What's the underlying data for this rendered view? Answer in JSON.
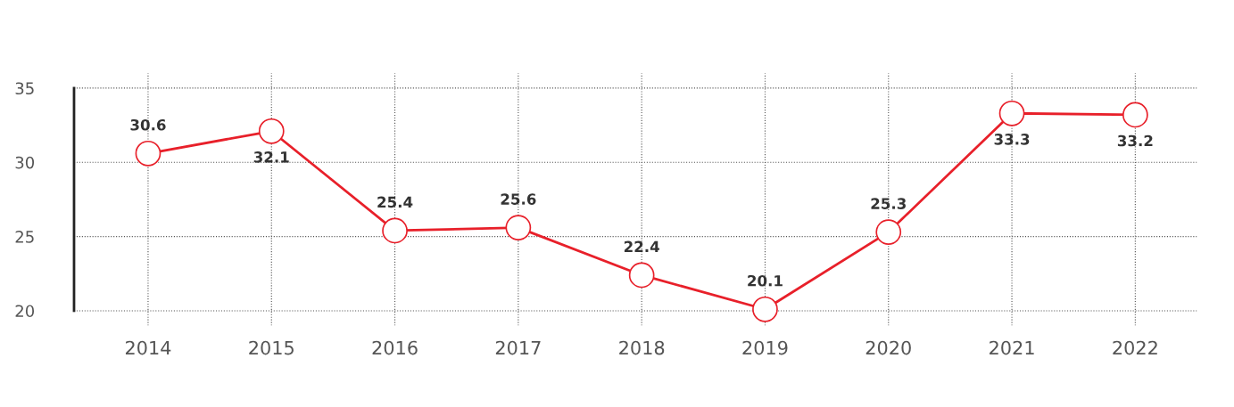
{
  "chart_data": {
    "type": "line",
    "categories": [
      "2014",
      "2015",
      "2016",
      "2017",
      "2018",
      "2019",
      "2020",
      "2021",
      "2022"
    ],
    "series": [
      {
        "color": "#e8202a",
        "values": [
          30.6,
          32.1,
          25.4,
          25.6,
          22.4,
          20.1,
          25.3,
          33.3,
          33.2
        ]
      }
    ],
    "ylim": [
      19,
      36
    ],
    "yticks": [
      20,
      25,
      30,
      35
    ],
    "grid": true,
    "data_labels": true,
    "marker": "circle",
    "line_style": "solid"
  }
}
